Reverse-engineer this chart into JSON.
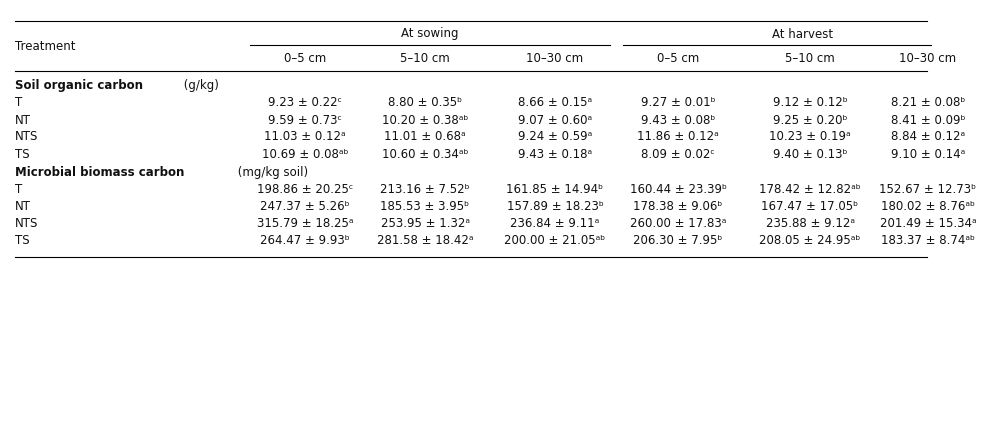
{
  "section1_bold": "Soil organic carbon",
  "section1_normal": " (g/kg)",
  "section2_bold": "Microbial biomass carbon",
  "section2_normal": " (mg/kg soil)",
  "section1_rows": [
    [
      "T",
      "9.23 ± 0.22ᶜ",
      "8.80 ± 0.35ᵇ",
      "8.66 ± 0.15ᵃ",
      "9.27 ± 0.01ᵇ",
      "9.12 ± 0.12ᵇ",
      "8.21 ± 0.08ᵇ"
    ],
    [
      "NT",
      "9.59 ± 0.73ᶜ",
      "10.20 ± 0.38ᵃᵇ",
      "9.07 ± 0.60ᵃ",
      "9.43 ± 0.08ᵇ",
      "9.25 ± 0.20ᵇ",
      "8.41 ± 0.09ᵇ"
    ],
    [
      "NTS",
      "11.03 ± 0.12ᵃ",
      "11.01 ± 0.68ᵃ",
      "9.24 ± 0.59ᵃ",
      "11.86 ± 0.12ᵃ",
      "10.23 ± 0.19ᵃ",
      "8.84 ± 0.12ᵃ"
    ],
    [
      "TS",
      "10.69 ± 0.08ᵃᵇ",
      "10.60 ± 0.34ᵃᵇ",
      "9.43 ± 0.18ᵃ",
      "8.09 ± 0.02ᶜ",
      "9.40 ± 0.13ᵇ",
      "9.10 ± 0.14ᵃ"
    ]
  ],
  "section2_rows": [
    [
      "T",
      "198.86 ± 20.25ᶜ",
      "213.16 ± 7.52ᵇ",
      "161.85 ± 14.94ᵇ",
      "160.44 ± 23.39ᵇ",
      "178.42 ± 12.82ᵃᵇ",
      "152.67 ± 12.73ᵇ"
    ],
    [
      "NT",
      "247.37 ± 5.26ᵇ",
      "185.53 ± 3.95ᵇ",
      "157.89 ± 18.23ᵇ",
      "178.38 ± 9.06ᵇ",
      "167.47 ± 17.05ᵇ",
      "180.02 ± 8.76ᵃᵇ"
    ],
    [
      "NTS",
      "315.79 ± 18.25ᵃ",
      "253.95 ± 1.32ᵃ",
      "236.84 ± 9.11ᵃ",
      "260.00 ± 17.83ᵃ",
      "235.88 ± 9.12ᵃ",
      "201.49 ± 15.34ᵃ"
    ],
    [
      "TS",
      "264.47 ± 9.93ᵇ",
      "281.58 ± 18.42ᵃ",
      "200.00 ± 21.05ᵃᵇ",
      "206.30 ± 7.95ᵇ",
      "208.05 ± 24.95ᵃᵇ",
      "183.37 ± 8.74ᵃᵇ"
    ]
  ],
  "bg_color": "#ffffff",
  "text_color": "#111111",
  "font_size": 8.5,
  "sowing_label": "At sowing",
  "harvest_label": "At harvest",
  "treatment_label": "Treatment",
  "sub_headers": [
    "0–5 cm",
    "5–10 cm",
    "10–30 cm",
    "0–5 cm",
    "5–10 cm",
    "10–30 cm"
  ]
}
